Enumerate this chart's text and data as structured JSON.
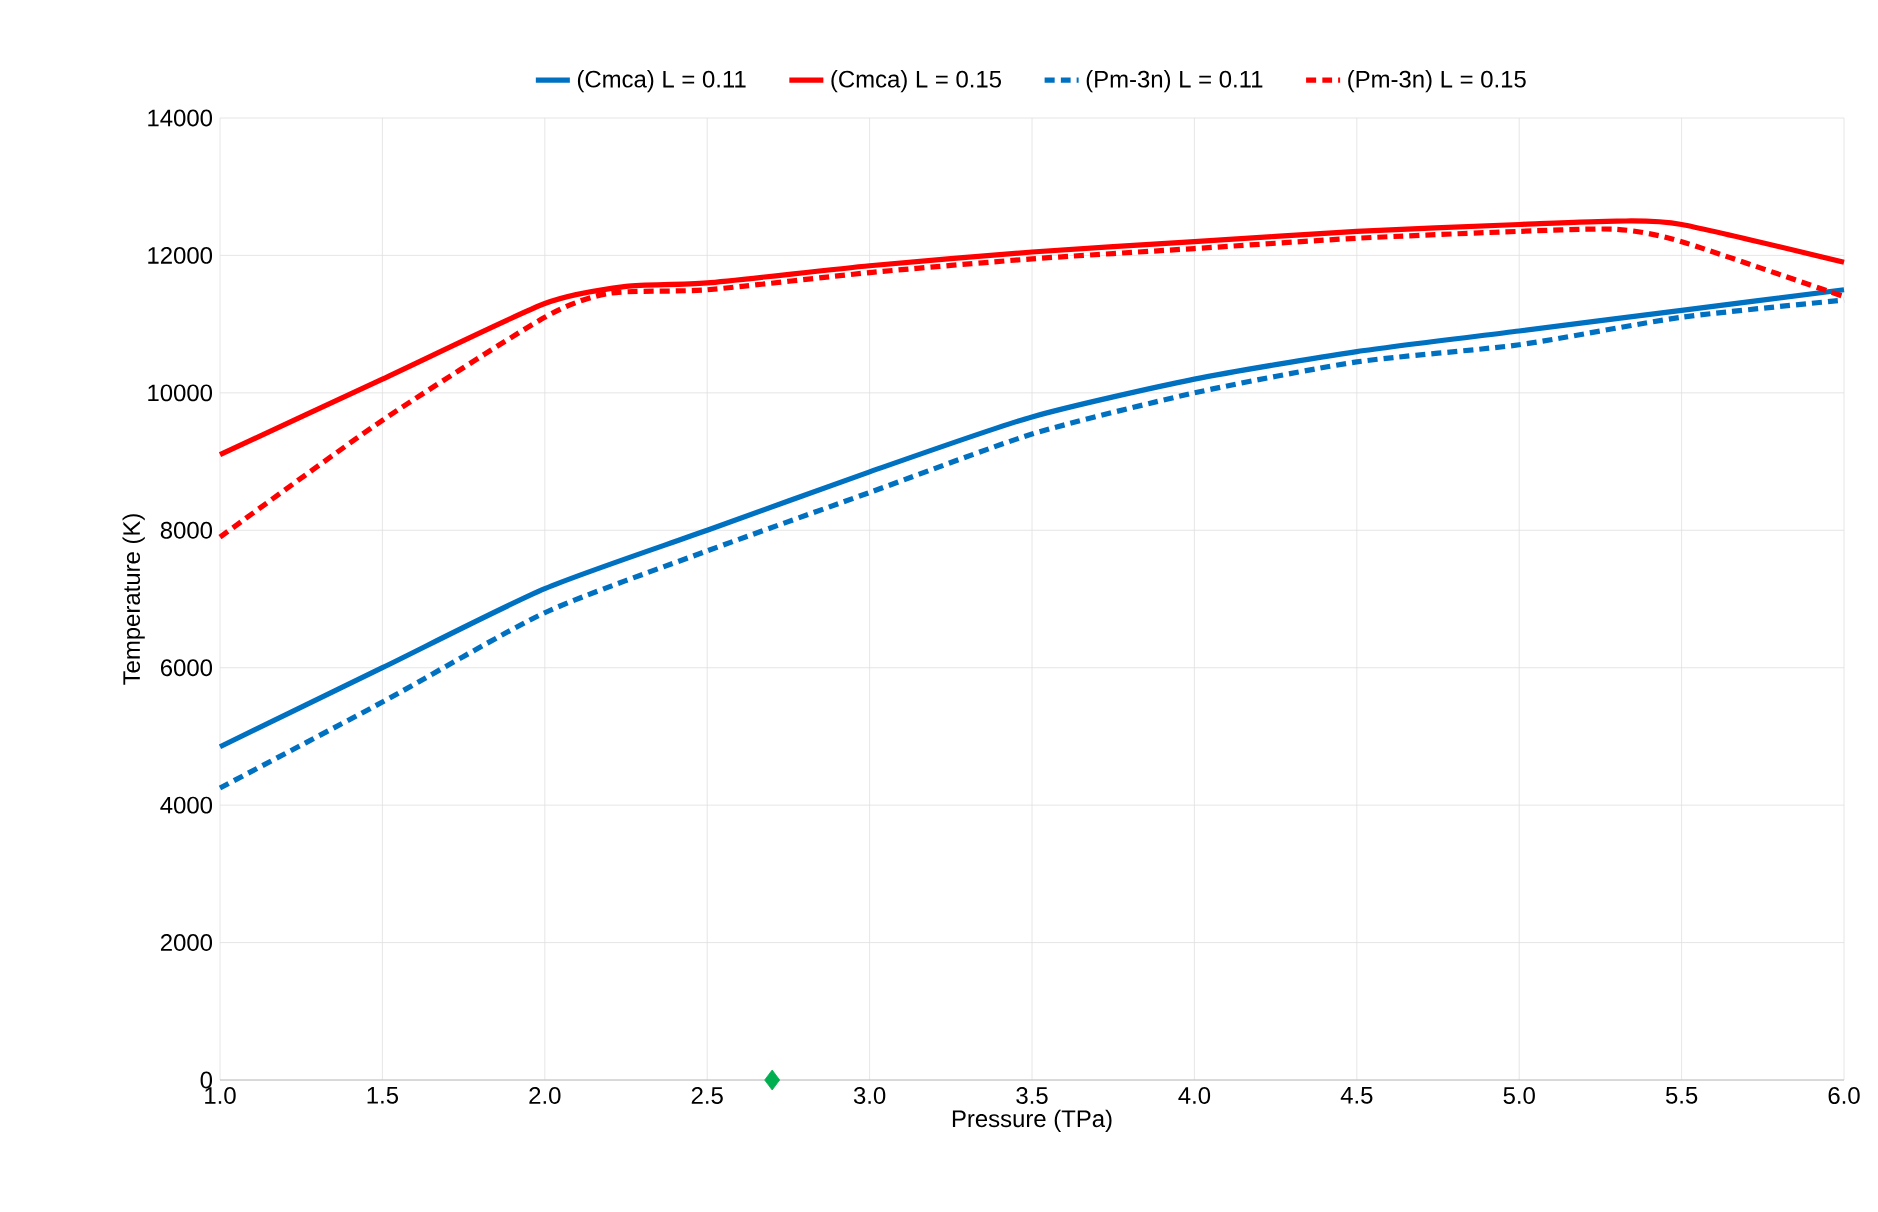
{
  "chart_data": {
    "type": "line",
    "xlabel": "Pressure (TPa)",
    "ylabel": "Temperature (K)",
    "xlim": [
      1.0,
      6.0
    ],
    "ylim": [
      0,
      14000
    ],
    "xticks": [
      {
        "value": 1.0,
        "label": "1.0"
      },
      {
        "value": 1.5,
        "label": "1.5"
      },
      {
        "value": 2.0,
        "label": "2.0"
      },
      {
        "value": 2.5,
        "label": "2.5"
      },
      {
        "value": 3.0,
        "label": "3.0"
      },
      {
        "value": 3.5,
        "label": "3.5"
      },
      {
        "value": 4.0,
        "label": "4.0"
      },
      {
        "value": 4.5,
        "label": "4.5"
      },
      {
        "value": 5.0,
        "label": "5.0"
      },
      {
        "value": 5.5,
        "label": "5.5"
      },
      {
        "value": 6.0,
        "label": "6.0"
      }
    ],
    "yticks": [
      0,
      2000,
      4000,
      6000,
      8000,
      10000,
      12000,
      14000
    ],
    "grid": true,
    "legend": "top",
    "marker": "none",
    "series": [
      {
        "name": "(Cmca) L = 0.11",
        "color": "#0070c0",
        "line_style": "solid",
        "x": [
          1.0,
          1.5,
          2.0,
          2.5,
          3.0,
          3.5,
          4.0,
          4.5,
          5.0,
          5.5,
          6.0
        ],
        "values": [
          4850,
          6000,
          7150,
          8000,
          8850,
          9650,
          10200,
          10600,
          10900,
          11200,
          11500
        ]
      },
      {
        "name": "(Cmca) L = 0.15",
        "color": "#ff0000",
        "line_style": "solid",
        "x": [
          1.0,
          1.5,
          2.0,
          2.25,
          2.5,
          3.0,
          3.5,
          4.0,
          4.5,
          5.0,
          5.3,
          5.5,
          6.0
        ],
        "values": [
          9100,
          10200,
          11300,
          11550,
          11600,
          11850,
          12050,
          12200,
          12350,
          12450,
          12500,
          12450,
          11900
        ]
      },
      {
        "name": "(Pm-3n) L = 0.11",
        "color": "#0070c0",
        "line_style": "dashed",
        "x": [
          1.0,
          1.5,
          2.0,
          2.5,
          3.0,
          3.5,
          4.0,
          4.5,
          5.0,
          5.5,
          6.0
        ],
        "values": [
          4250,
          5500,
          6800,
          7700,
          8550,
          9400,
          10000,
          10450,
          10700,
          11100,
          11350
        ]
      },
      {
        "name": "(Pm-3n) L = 0.15",
        "color": "#ff0000",
        "line_style": "dashed",
        "x": [
          1.0,
          1.5,
          2.0,
          2.2,
          2.5,
          3.0,
          3.5,
          4.0,
          4.5,
          5.0,
          5.3,
          5.5,
          6.0
        ],
        "values": [
          7900,
          9600,
          11100,
          11450,
          11500,
          11750,
          11950,
          12100,
          12250,
          12350,
          12380,
          12200,
          11400
        ]
      },
      {
        "type": "scatter",
        "marker": "diamond",
        "color": "#00b050",
        "x": [
          2.7
        ],
        "values": [
          0
        ]
      }
    ]
  }
}
